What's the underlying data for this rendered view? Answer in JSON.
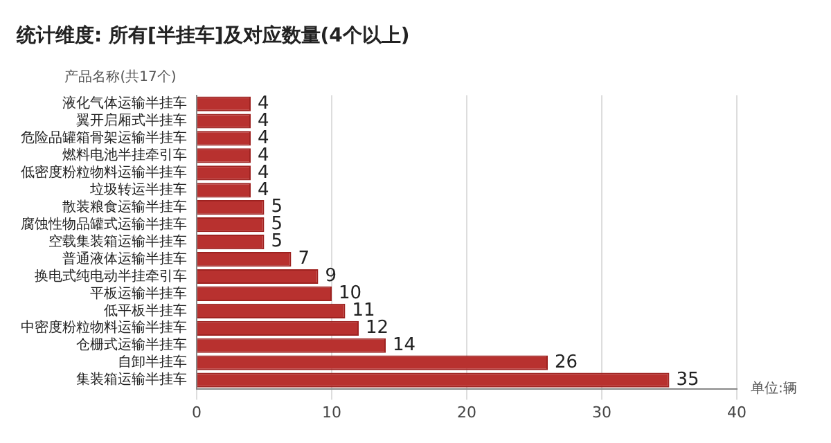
{
  "chart_data": {
    "type": "bar",
    "orientation": "horizontal",
    "title": "统计维度: 所有[半挂车]及对应数量(4个以上)",
    "ylabel": "产品名称(共17个)",
    "xlabel": "单位:辆",
    "categories": [
      "液化气体运输半挂车",
      "翼开启厢式半挂车",
      "危险品罐箱骨架运输半挂车",
      "燃料电池半挂牵引车",
      "低密度粉粒物料运输半挂车",
      "垃圾转运半挂车",
      "散装粮食运输半挂车",
      "腐蚀性物品罐式运输半挂车",
      "空载集装箱运输半挂车",
      "普通液体运输半挂车",
      "换电式纯电动半挂牵引车",
      "平板运输半挂车",
      "低平板半挂车",
      "中密度粉粒物料运输半挂车",
      "仓栅式运输半挂车",
      "自卸半挂车",
      "集装箱运输半挂车"
    ],
    "values": [
      4,
      4,
      4,
      4,
      4,
      4,
      5,
      5,
      5,
      7,
      9,
      10,
      11,
      12,
      14,
      26,
      35
    ],
    "color": "#b8312f",
    "xlim": [
      0,
      40
    ],
    "xticks": [
      0,
      10,
      20,
      30,
      40
    ],
    "grid": "x",
    "data_labels": true,
    "legend": false
  }
}
